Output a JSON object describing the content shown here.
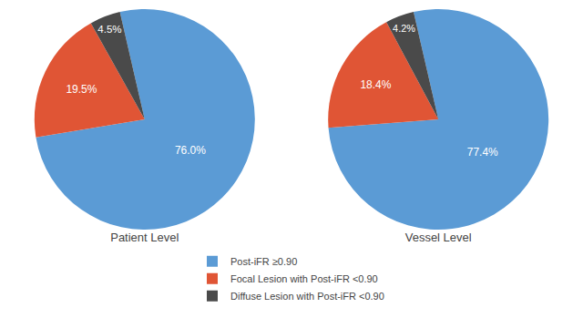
{
  "chart_data": [
    {
      "type": "pie",
      "title": "Patient Level",
      "categories": [
        "Post-iFR ≥0.90",
        "Focal Lesion with Post-iFR <0.90",
        "Diffuse Lesion with Post-iFR <0.90"
      ],
      "values": [
        76.0,
        19.5,
        4.5
      ],
      "value_labels": [
        "76.0%",
        "19.5%",
        "4.5%"
      ],
      "colors": [
        "#5B9BD5",
        "#E05535",
        "#4A4A4A"
      ],
      "data_labels": true,
      "legend": "bottom"
    },
    {
      "type": "pie",
      "title": "Vessel Level",
      "categories": [
        "Post-iFR ≥0.90",
        "Focal Lesion with Post-iFR <0.90",
        "Diffuse Lesion with Post-iFR <0.90"
      ],
      "values": [
        77.4,
        18.4,
        4.2
      ],
      "value_labels": [
        "77.4%",
        "18.4%",
        "4.2%"
      ],
      "colors": [
        "#5B9BD5",
        "#E05535",
        "#4A4A4A"
      ],
      "data_labels": true,
      "legend": "bottom"
    }
  ]
}
